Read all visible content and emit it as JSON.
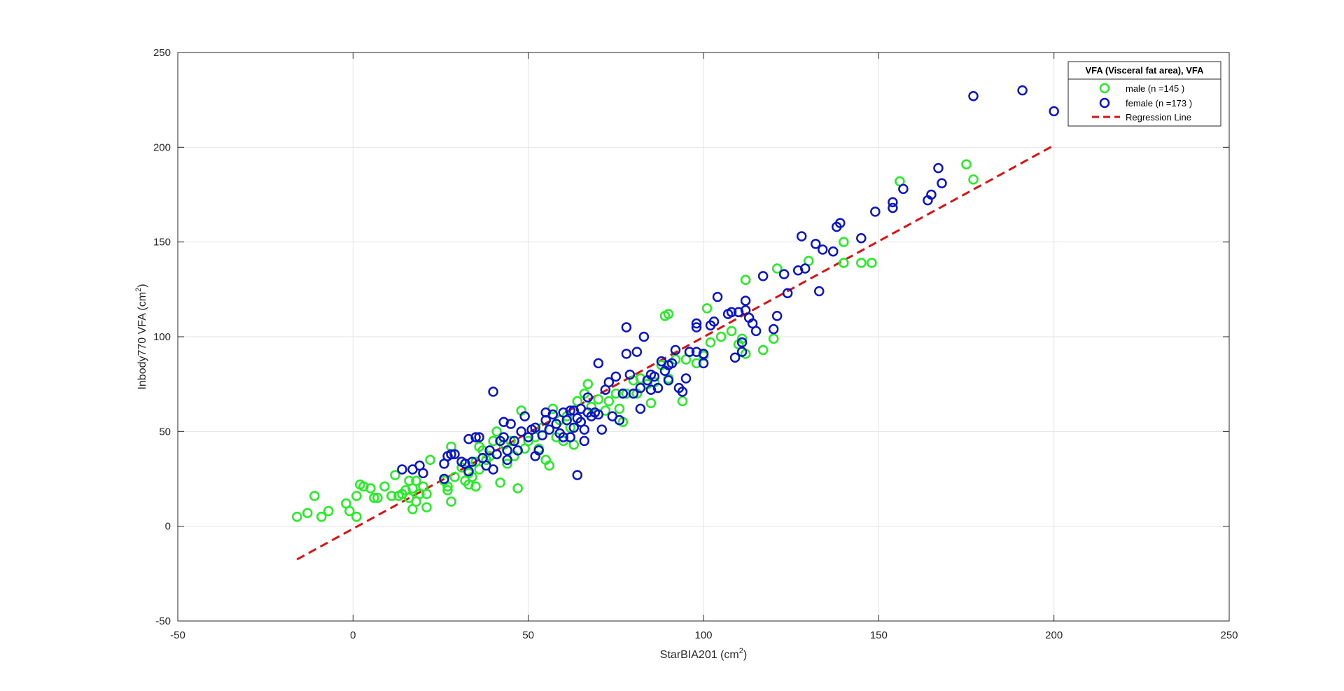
{
  "chart_data": {
    "type": "scatter",
    "title": "",
    "xlabel": "StarBIA201 (cm",
    "xlabel_sup": "2",
    "xlabel_suffix": ")",
    "ylabel": "Inbody770 VFA (cm",
    "ylabel_sup": "2",
    "ylabel_suffix": ")",
    "xlim": [
      -50,
      250
    ],
    "ylim": [
      -50,
      250
    ],
    "xticks": [
      -50,
      0,
      50,
      100,
      150,
      200,
      250
    ],
    "yticks": [
      -50,
      0,
      50,
      100,
      150,
      200,
      250
    ],
    "grid": true,
    "legend_placement": "top-right",
    "legend_title": "VFA  (Visceral fat area), VFA",
    "colors": {
      "male": "#22ee22",
      "female": "#0a14c8",
      "regression": "#dd1111"
    },
    "series": [
      {
        "name": "male (n =145 )",
        "key": "male",
        "points": [
          [
            -16,
            5
          ],
          [
            -13,
            7
          ],
          [
            -11,
            16
          ],
          [
            -9,
            5
          ],
          [
            -7,
            8
          ],
          [
            -2,
            12
          ],
          [
            -1,
            8
          ],
          [
            1,
            5
          ],
          [
            1,
            16
          ],
          [
            2,
            22
          ],
          [
            3,
            21
          ],
          [
            5,
            20
          ],
          [
            6,
            15
          ],
          [
            7,
            15
          ],
          [
            9,
            21
          ],
          [
            11,
            16
          ],
          [
            12,
            27
          ],
          [
            13,
            16
          ],
          [
            14,
            17
          ],
          [
            15,
            19
          ],
          [
            16,
            24
          ],
          [
            16,
            15
          ],
          [
            17,
            9
          ],
          [
            17,
            20
          ],
          [
            18,
            13
          ],
          [
            18,
            24
          ],
          [
            19,
            17
          ],
          [
            20,
            21
          ],
          [
            21,
            10
          ],
          [
            21,
            17
          ],
          [
            22,
            35
          ],
          [
            26,
            24
          ],
          [
            27,
            19
          ],
          [
            27,
            21
          ],
          [
            28,
            13
          ],
          [
            28,
            42
          ],
          [
            29,
            26
          ],
          [
            31,
            31
          ],
          [
            32,
            24
          ],
          [
            33,
            22
          ],
          [
            33,
            28
          ],
          [
            34,
            26
          ],
          [
            35,
            21
          ],
          [
            35,
            34
          ],
          [
            36,
            30
          ],
          [
            36,
            42
          ],
          [
            37,
            40
          ],
          [
            38,
            35
          ],
          [
            39,
            37
          ],
          [
            40,
            45
          ],
          [
            41,
            50
          ],
          [
            42,
            23
          ],
          [
            43,
            43
          ],
          [
            44,
            33
          ],
          [
            45,
            45
          ],
          [
            46,
            37
          ],
          [
            47,
            20
          ],
          [
            48,
            61
          ],
          [
            49,
            41
          ],
          [
            50,
            45
          ],
          [
            52,
            47
          ],
          [
            53,
            41
          ],
          [
            54,
            52
          ],
          [
            55,
            35
          ],
          [
            56,
            32
          ],
          [
            57,
            62
          ],
          [
            58,
            47
          ],
          [
            59,
            56
          ],
          [
            60,
            45
          ],
          [
            61,
            58
          ],
          [
            62,
            52
          ],
          [
            63,
            43
          ],
          [
            64,
            66
          ],
          [
            65,
            55
          ],
          [
            66,
            70
          ],
          [
            67,
            75
          ],
          [
            68,
            63
          ],
          [
            69,
            60
          ],
          [
            70,
            67
          ],
          [
            72,
            61
          ],
          [
            73,
            66
          ],
          [
            75,
            70
          ],
          [
            76,
            62
          ],
          [
            77,
            55
          ],
          [
            78,
            70
          ],
          [
            80,
            77
          ],
          [
            81,
            70
          ],
          [
            82,
            78
          ],
          [
            84,
            75
          ],
          [
            85,
            65
          ],
          [
            86,
            76
          ],
          [
            88,
            85
          ],
          [
            89,
            111
          ],
          [
            90,
            112
          ],
          [
            90,
            78
          ],
          [
            92,
            88
          ],
          [
            94,
            66
          ],
          [
            95,
            88
          ],
          [
            96,
            92
          ],
          [
            98,
            86
          ],
          [
            100,
            90
          ],
          [
            101,
            115
          ],
          [
            102,
            97
          ],
          [
            105,
            100
          ],
          [
            108,
            103
          ],
          [
            110,
            96
          ],
          [
            111,
            99
          ],
          [
            112,
            130
          ],
          [
            112,
            91
          ],
          [
            117,
            93
          ],
          [
            120,
            99
          ],
          [
            121,
            136
          ],
          [
            130,
            140
          ],
          [
            140,
            150
          ],
          [
            140,
            139
          ],
          [
            145,
            139
          ],
          [
            148,
            139
          ],
          [
            156,
            182
          ],
          [
            175,
            191
          ],
          [
            177,
            183
          ]
        ]
      },
      {
        "name": "female (n =173 )",
        "key": "female",
        "points": [
          [
            14,
            30
          ],
          [
            17,
            30
          ],
          [
            19,
            32
          ],
          [
            20,
            28
          ],
          [
            26,
            25
          ],
          [
            26,
            33
          ],
          [
            27,
            37
          ],
          [
            28,
            38
          ],
          [
            29,
            38
          ],
          [
            31,
            34
          ],
          [
            32,
            33
          ],
          [
            33,
            46
          ],
          [
            33,
            29
          ],
          [
            34,
            34
          ],
          [
            35,
            47
          ],
          [
            36,
            47
          ],
          [
            37,
            36
          ],
          [
            38,
            32
          ],
          [
            39,
            40
          ],
          [
            40,
            71
          ],
          [
            40,
            30
          ],
          [
            41,
            38
          ],
          [
            42,
            45
          ],
          [
            43,
            47
          ],
          [
            43,
            55
          ],
          [
            44,
            35
          ],
          [
            44,
            40
          ],
          [
            45,
            54
          ],
          [
            46,
            45
          ],
          [
            47,
            40
          ],
          [
            48,
            50
          ],
          [
            49,
            58
          ],
          [
            50,
            47
          ],
          [
            51,
            51
          ],
          [
            52,
            37
          ],
          [
            52,
            52
          ],
          [
            53,
            40
          ],
          [
            54,
            48
          ],
          [
            55,
            56
          ],
          [
            55,
            60
          ],
          [
            56,
            51
          ],
          [
            57,
            59
          ],
          [
            58,
            54
          ],
          [
            59,
            49
          ],
          [
            60,
            47
          ],
          [
            60,
            60
          ],
          [
            61,
            56
          ],
          [
            62,
            61
          ],
          [
            62,
            47
          ],
          [
            63,
            52
          ],
          [
            63,
            61
          ],
          [
            64,
            27
          ],
          [
            64,
            57
          ],
          [
            65,
            55
          ],
          [
            65,
            62
          ],
          [
            66,
            45
          ],
          [
            66,
            51
          ],
          [
            67,
            60
          ],
          [
            67,
            68
          ],
          [
            68,
            58
          ],
          [
            69,
            60
          ],
          [
            70,
            86
          ],
          [
            70,
            59
          ],
          [
            71,
            51
          ],
          [
            72,
            72
          ],
          [
            73,
            76
          ],
          [
            74,
            58
          ],
          [
            75,
            79
          ],
          [
            76,
            56
          ],
          [
            77,
            70
          ],
          [
            78,
            105
          ],
          [
            78,
            91
          ],
          [
            79,
            80
          ],
          [
            80,
            70
          ],
          [
            81,
            92
          ],
          [
            82,
            62
          ],
          [
            82,
            73
          ],
          [
            83,
            100
          ],
          [
            84,
            77
          ],
          [
            85,
            72
          ],
          [
            85,
            80
          ],
          [
            86,
            79
          ],
          [
            87,
            73
          ],
          [
            88,
            87
          ],
          [
            89,
            82
          ],
          [
            90,
            85
          ],
          [
            90,
            77
          ],
          [
            91,
            86
          ],
          [
            92,
            93
          ],
          [
            93,
            73
          ],
          [
            94,
            71
          ],
          [
            95,
            78
          ],
          [
            96,
            92
          ],
          [
            98,
            92
          ],
          [
            98,
            107
          ],
          [
            98,
            105
          ],
          [
            100,
            86
          ],
          [
            100,
            91
          ],
          [
            102,
            106
          ],
          [
            103,
            108
          ],
          [
            104,
            121
          ],
          [
            107,
            112
          ],
          [
            108,
            113
          ],
          [
            109,
            89
          ],
          [
            110,
            113
          ],
          [
            111,
            92
          ],
          [
            111,
            97
          ],
          [
            112,
            119
          ],
          [
            112,
            114
          ],
          [
            113,
            110
          ],
          [
            114,
            107
          ],
          [
            115,
            103
          ],
          [
            117,
            132
          ],
          [
            120,
            104
          ],
          [
            121,
            111
          ],
          [
            123,
            133
          ],
          [
            124,
            123
          ],
          [
            127,
            135
          ],
          [
            128,
            153
          ],
          [
            129,
            136
          ],
          [
            132,
            149
          ],
          [
            133,
            124
          ],
          [
            134,
            146
          ],
          [
            137,
            145
          ],
          [
            138,
            158
          ],
          [
            139,
            160
          ],
          [
            145,
            152
          ],
          [
            149,
            166
          ],
          [
            154,
            168
          ],
          [
            154,
            171
          ],
          [
            157,
            178
          ],
          [
            164,
            172
          ],
          [
            165,
            175
          ],
          [
            167,
            189
          ],
          [
            168,
            181
          ],
          [
            177,
            227
          ],
          [
            191,
            230
          ],
          [
            200,
            219
          ]
        ]
      }
    ],
    "regression": {
      "name": "Regression Line",
      "x": [
        -16,
        200
      ],
      "y": [
        -17.5,
        201
      ]
    }
  }
}
